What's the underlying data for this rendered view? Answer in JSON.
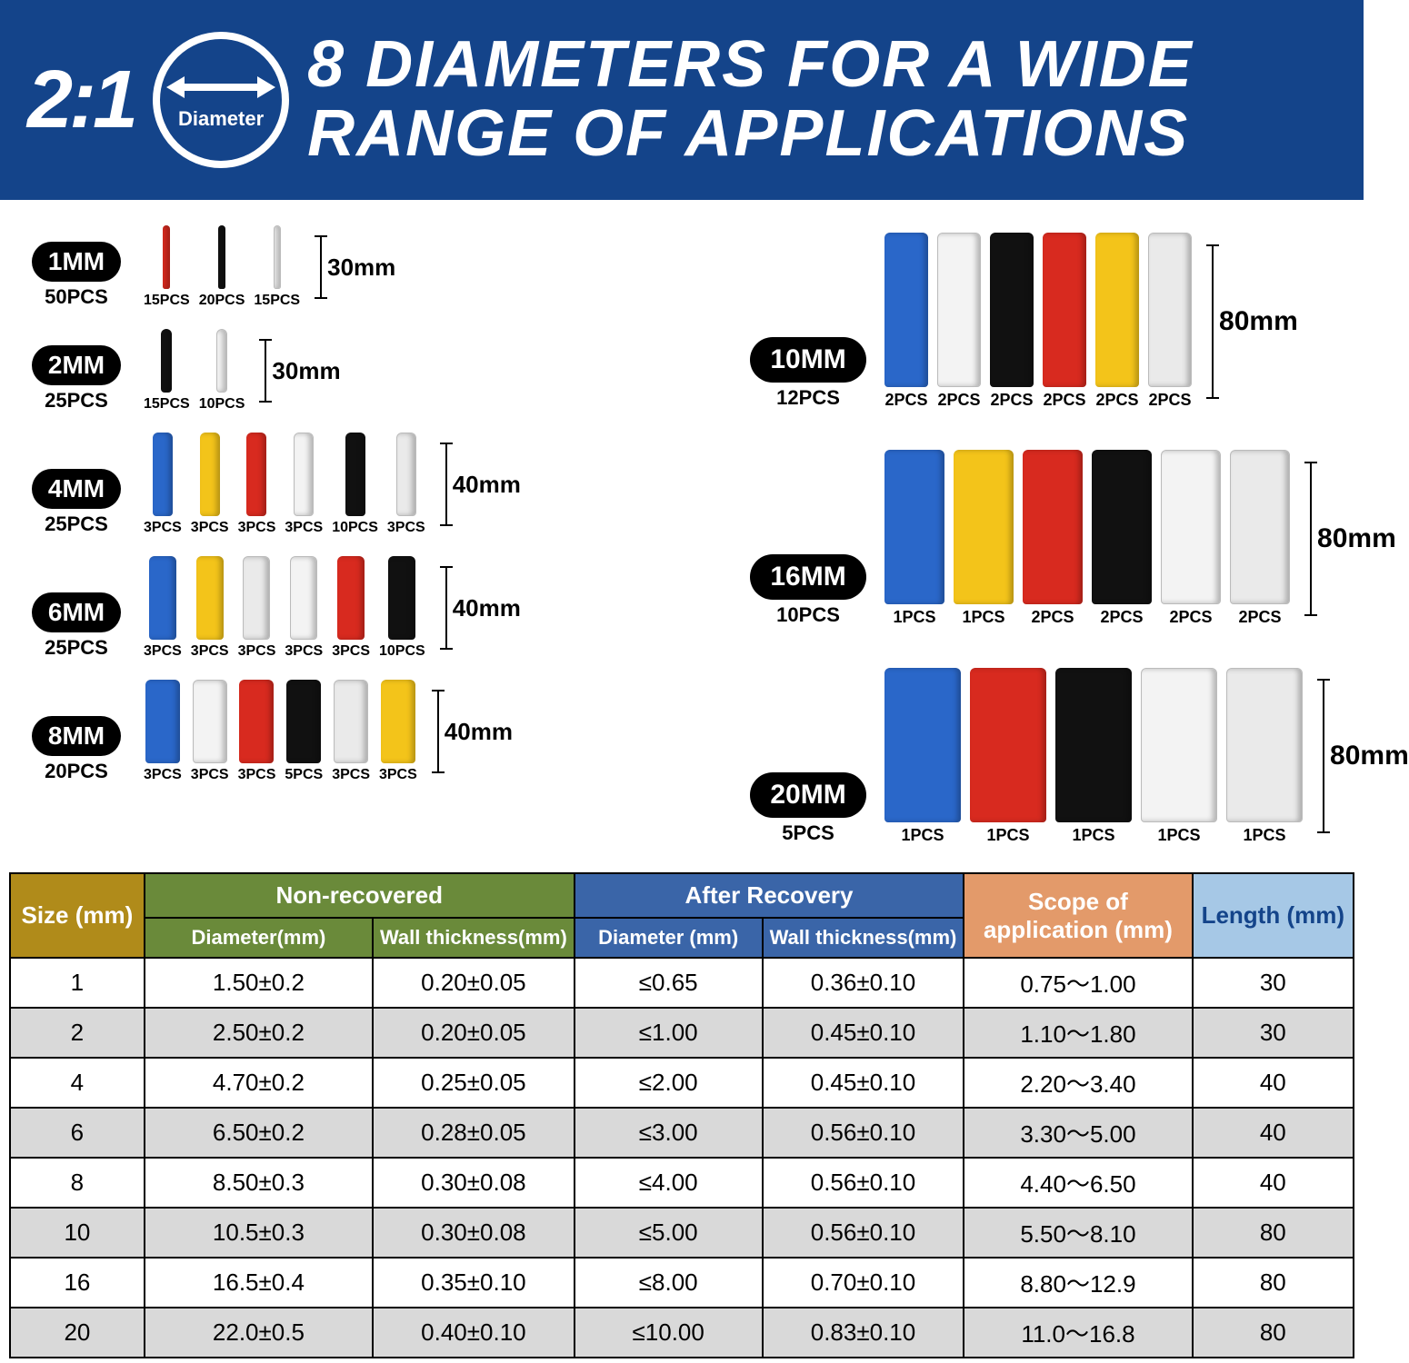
{
  "colors": {
    "header_bg": "#14448a",
    "size_col": "#b08b1a",
    "nonrec_col": "#6a8a3a",
    "after_col": "#3a65a8",
    "scope_col": "#e39a6a",
    "length_col": "#a6c8e6",
    "tube": {
      "red": "#d82a1f",
      "black": "#111111",
      "white": "#f3f3f3",
      "blue": "#2a67c9",
      "yellow": "#f3c41a",
      "clear": "#eaeaea"
    }
  },
  "header": {
    "ratio": "2:1",
    "diameter_label": "Diameter",
    "headline_l1": "8 DIAMETERS FOR A WIDE",
    "headline_l2": "RANGE OF APPLICATIONS"
  },
  "left_groups": [
    {
      "size": "1MM",
      "total": "50PCS",
      "len_mm": "30mm",
      "tube_h": 70,
      "tube_w": 8,
      "items": [
        {
          "c": "red",
          "q": "15PCS"
        },
        {
          "c": "black",
          "q": "20PCS"
        },
        {
          "c": "white",
          "q": "15PCS"
        }
      ]
    },
    {
      "size": "2MM",
      "total": "25PCS",
      "len_mm": "30mm",
      "tube_h": 70,
      "tube_w": 12,
      "items": [
        {
          "c": "black",
          "q": "15PCS"
        },
        {
          "c": "white",
          "q": "10PCS"
        }
      ]
    },
    {
      "size": "4MM",
      "total": "25PCS",
      "len_mm": "40mm",
      "tube_h": 92,
      "tube_w": 22,
      "items": [
        {
          "c": "blue",
          "q": "3PCS"
        },
        {
          "c": "yellow",
          "q": "3PCS"
        },
        {
          "c": "red",
          "q": "3PCS"
        },
        {
          "c": "white",
          "q": "3PCS"
        },
        {
          "c": "black",
          "q": "10PCS"
        },
        {
          "c": "clear",
          "q": "3PCS"
        }
      ]
    },
    {
      "size": "6MM",
      "total": "25PCS",
      "len_mm": "40mm",
      "tube_h": 92,
      "tube_w": 30,
      "items": [
        {
          "c": "blue",
          "q": "3PCS"
        },
        {
          "c": "yellow",
          "q": "3PCS"
        },
        {
          "c": "clear",
          "q": "3PCS"
        },
        {
          "c": "white",
          "q": "3PCS"
        },
        {
          "c": "red",
          "q": "3PCS"
        },
        {
          "c": "black",
          "q": "10PCS"
        }
      ]
    },
    {
      "size": "8MM",
      "total": "20PCS",
      "len_mm": "40mm",
      "tube_h": 92,
      "tube_w": 38,
      "items": [
        {
          "c": "blue",
          "q": "3PCS"
        },
        {
          "c": "white",
          "q": "3PCS"
        },
        {
          "c": "red",
          "q": "3PCS"
        },
        {
          "c": "black",
          "q": "5PCS"
        },
        {
          "c": "clear",
          "q": "3PCS"
        },
        {
          "c": "yellow",
          "q": "3PCS"
        }
      ]
    }
  ],
  "right_groups": [
    {
      "size": "10MM",
      "total": "12PCS",
      "len_mm": "80mm",
      "tube_h": 170,
      "tube_w": 48,
      "items": [
        {
          "c": "blue",
          "q": "2PCS"
        },
        {
          "c": "white",
          "q": "2PCS"
        },
        {
          "c": "black",
          "q": "2PCS"
        },
        {
          "c": "red",
          "q": "2PCS"
        },
        {
          "c": "yellow",
          "q": "2PCS"
        },
        {
          "c": "clear",
          "q": "2PCS"
        }
      ]
    },
    {
      "size": "16MM",
      "total": "10PCS",
      "len_mm": "80mm",
      "tube_h": 170,
      "tube_w": 66,
      "items": [
        {
          "c": "blue",
          "q": "1PCS"
        },
        {
          "c": "yellow",
          "q": "1PCS"
        },
        {
          "c": "red",
          "q": "2PCS"
        },
        {
          "c": "black",
          "q": "2PCS"
        },
        {
          "c": "white",
          "q": "2PCS"
        },
        {
          "c": "clear",
          "q": "2PCS"
        }
      ]
    },
    {
      "size": "20MM",
      "total": "5PCS",
      "len_mm": "80mm",
      "tube_h": 170,
      "tube_w": 84,
      "items": [
        {
          "c": "blue",
          "q": "1PCS"
        },
        {
          "c": "red",
          "q": "1PCS"
        },
        {
          "c": "black",
          "q": "1PCS"
        },
        {
          "c": "white",
          "q": "1PCS"
        },
        {
          "c": "clear",
          "q": "1PCS"
        }
      ]
    }
  ],
  "table": {
    "headers": {
      "size": "Size (mm)",
      "nonrec": "Non-recovered",
      "nonrec_diam": "Diameter(mm)",
      "nonrec_wall": "Wall thickness(mm)",
      "after": "After Recovery",
      "after_diam": "Diameter (mm)",
      "after_wall": "Wall thickness(mm)",
      "scope": "Scope of application (mm)",
      "length": "Length (mm)"
    },
    "rows": [
      [
        "1",
        "1.50±0.2",
        "0.20±0.05",
        "≤0.65",
        "0.36±0.10",
        "0.75～1.00",
        "30"
      ],
      [
        "2",
        "2.50±0.2",
        "0.20±0.05",
        "≤1.00",
        "0.45±0.10",
        "1.10～1.80",
        "30"
      ],
      [
        "4",
        "4.70±0.2",
        "0.25±0.05",
        "≤2.00",
        "0.45±0.10",
        "2.20～3.40",
        "40"
      ],
      [
        "6",
        "6.50±0.2",
        "0.28±0.05",
        "≤3.00",
        "0.56±0.10",
        "3.30～5.00",
        "40"
      ],
      [
        "8",
        "8.50±0.3",
        "0.30±0.08",
        "≤4.00",
        "0.56±0.10",
        "4.40～6.50",
        "40"
      ],
      [
        "10",
        "10.5±0.3",
        "0.30±0.08",
        "≤5.00",
        "0.56±0.10",
        "5.50～8.10",
        "80"
      ],
      [
        "16",
        "16.5±0.4",
        "0.35±0.10",
        "≤8.00",
        "0.70±0.10",
        "8.80～12.9",
        "80"
      ],
      [
        "20",
        "22.0±0.5",
        "0.40±0.10",
        "≤10.00",
        "0.83±0.10",
        "11.0～16.8",
        "80"
      ]
    ]
  }
}
